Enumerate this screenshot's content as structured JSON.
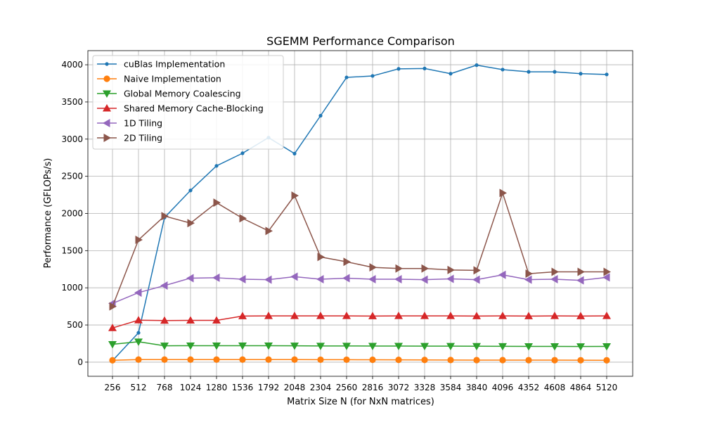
{
  "chart_data": {
    "type": "line",
    "title": "SGEMM Performance Comparison",
    "xlabel": "Matrix Size N (for NxN matrices)",
    "ylabel": "Performance (GFLOPs/s)",
    "x": [
      256,
      512,
      768,
      1024,
      1280,
      1536,
      1792,
      2048,
      2304,
      2560,
      2816,
      3072,
      3328,
      3584,
      3840,
      4096,
      4352,
      4608,
      4864,
      5120
    ],
    "x_tick_labels": [
      "256",
      "512",
      "768",
      "1024",
      "1280",
      "1536",
      "1792",
      "2048",
      "2304",
      "2560",
      "2816",
      "3072",
      "3328",
      "3584",
      "3840",
      "4096",
      "4352",
      "4608",
      "4864",
      "5120"
    ],
    "ylim": [
      -190,
      4190
    ],
    "y_ticks": [
      0,
      500,
      1000,
      1500,
      2000,
      2500,
      3000,
      3500,
      4000
    ],
    "y_tick_labels": [
      "0",
      "500",
      "1000",
      "1500",
      "2000",
      "2500",
      "3000",
      "3500",
      "4000"
    ],
    "grid": true,
    "legend_position": "top-left",
    "series": [
      {
        "name": "cuBlas Implementation",
        "color": "#1f77b4",
        "marker": "point",
        "values": [
          20,
          395,
          1945,
          2310,
          2640,
          2810,
          3020,
          2805,
          3315,
          3830,
          3850,
          3945,
          3950,
          3880,
          3995,
          3935,
          3905,
          3905,
          3880,
          3870
        ]
      },
      {
        "name": "Naive Implementation",
        "color": "#ff7f0e",
        "marker": "circle",
        "values": [
          25,
          35,
          35,
          35,
          35,
          35,
          35,
          35,
          33,
          33,
          32,
          31,
          30,
          29,
          28,
          28,
          27,
          27,
          26,
          25
        ]
      },
      {
        "name": "Global Memory Coalescing",
        "color": "#2ca02c",
        "marker": "triangle-down",
        "values": [
          240,
          275,
          220,
          222,
          222,
          222,
          222,
          220,
          218,
          218,
          217,
          217,
          216,
          216,
          214,
          213,
          212,
          212,
          211,
          212
        ]
      },
      {
        "name": "Shared Memory Cache-Blocking",
        "color": "#d62728",
        "marker": "triangle-up",
        "values": [
          460,
          565,
          560,
          562,
          562,
          620,
          622,
          622,
          622,
          622,
          620,
          622,
          622,
          622,
          620,
          622,
          620,
          622,
          620,
          622
        ]
      },
      {
        "name": "1D Tiling",
        "color": "#9467bd",
        "marker": "triangle-left",
        "values": [
          790,
          935,
          1030,
          1130,
          1135,
          1115,
          1110,
          1150,
          1115,
          1130,
          1115,
          1115,
          1110,
          1120,
          1110,
          1175,
          1110,
          1115,
          1100,
          1140
        ]
      },
      {
        "name": "2D Tiling",
        "color": "#8c564b",
        "marker": "triangle-right",
        "values": [
          750,
          1645,
          1965,
          1870,
          2145,
          1935,
          1765,
          2240,
          1415,
          1350,
          1275,
          1260,
          1260,
          1240,
          1235,
          2275,
          1190,
          1215,
          1215,
          1215
        ]
      }
    ]
  }
}
